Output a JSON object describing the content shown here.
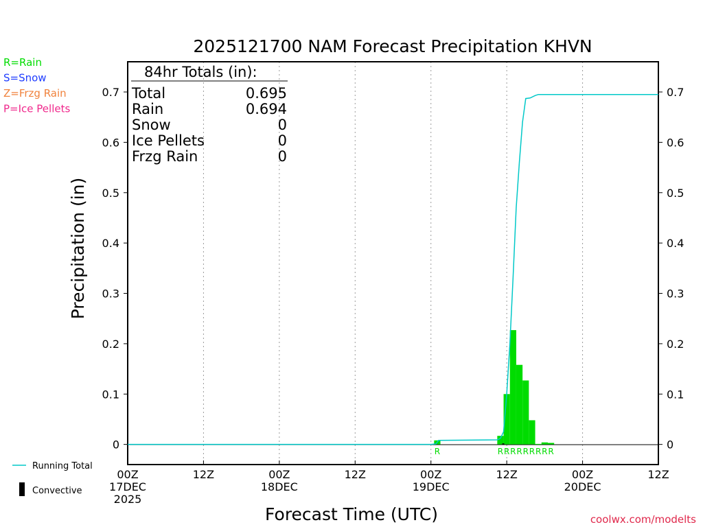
{
  "chart_data": {
    "type": "bar",
    "title": "2025121700 NAM Forecast Precipitation KHVN",
    "xlabel": "Forecast Time (UTC)",
    "ylabel": "Precipitation (in)",
    "ylim": [
      -0.04,
      0.76
    ],
    "yticks": [
      0,
      0.1,
      0.2,
      0.3,
      0.4,
      0.5,
      0.6,
      0.7
    ],
    "ytick_labels": [
      "0",
      "0.1",
      "0.2",
      "0.3",
      "0.4",
      "0.5",
      "0.6",
      "0.7"
    ],
    "xlim_hours": [
      0,
      84
    ],
    "xticks": [
      {
        "hour": 0,
        "lines": [
          "00Z",
          "17DEC",
          "2025"
        ]
      },
      {
        "hour": 12,
        "lines": [
          "12Z"
        ]
      },
      {
        "hour": 24,
        "lines": [
          "00Z",
          "18DEC"
        ]
      },
      {
        "hour": 36,
        "lines": [
          "12Z"
        ]
      },
      {
        "hour": 48,
        "lines": [
          "00Z",
          "19DEC"
        ]
      },
      {
        "hour": 60,
        "lines": [
          "12Z"
        ]
      },
      {
        "hour": 72,
        "lines": [
          "00Z",
          "20DEC"
        ]
      },
      {
        "hour": 84,
        "lines": [
          "12Z"
        ]
      }
    ],
    "bar_interval_hours": 1,
    "bars": [
      {
        "hour": 49,
        "value": 0.008,
        "ptype": "R"
      },
      {
        "hour": 59,
        "value": 0.017,
        "ptype": "R"
      },
      {
        "hour": 60,
        "value": 0.1,
        "ptype": "R"
      },
      {
        "hour": 61,
        "value": 0.227,
        "ptype": "R"
      },
      {
        "hour": 62,
        "value": 0.158,
        "ptype": "R"
      },
      {
        "hour": 63,
        "value": 0.127,
        "ptype": "R"
      },
      {
        "hour": 64,
        "value": 0.048,
        "ptype": "R"
      },
      {
        "hour": 65,
        "value": 0.001,
        "ptype": "R"
      },
      {
        "hour": 66,
        "value": 0.004,
        "ptype": "R"
      },
      {
        "hour": 67,
        "value": 0.003,
        "ptype": "R"
      }
    ],
    "convective": [
      {
        "hour": 59.5,
        "value": 0.002
      }
    ],
    "running_total": [
      [
        0,
        0
      ],
      [
        48,
        0
      ],
      [
        48.8,
        0.001
      ],
      [
        49.2,
        0.008
      ],
      [
        58.5,
        0.009
      ],
      [
        59,
        0.012
      ],
      [
        59.5,
        0.025
      ],
      [
        60,
        0.1
      ],
      [
        60.5,
        0.2
      ],
      [
        61,
        0.33
      ],
      [
        61.5,
        0.47
      ],
      [
        62,
        0.56
      ],
      [
        62.5,
        0.64
      ],
      [
        63,
        0.687
      ],
      [
        63.7,
        0.688
      ],
      [
        64.5,
        0.693
      ],
      [
        65,
        0.695
      ],
      [
        84,
        0.695
      ]
    ],
    "totals": {
      "heading": "84hr Totals (in):",
      "rows": [
        {
          "label": "Total",
          "value": "0.695"
        },
        {
          "label": "Rain",
          "value": "0.694"
        },
        {
          "label": "Snow",
          "value": "0"
        },
        {
          "label": "Ice Pellets",
          "value": "0"
        },
        {
          "label": "Frzg Rain",
          "value": "0"
        }
      ]
    },
    "ptype_legend": [
      {
        "label": "R=Rain",
        "color": "#00dc00"
      },
      {
        "label": "S=Snow",
        "color": "#1e3cff"
      },
      {
        "label": "Z=Frzg Rain",
        "color": "#f0823c"
      },
      {
        "label": "P=Ice Pellets",
        "color": "#f0288c"
      }
    ],
    "series_legend": [
      {
        "label": "Running Total",
        "color": "#00c8c8"
      },
      {
        "label": "Convective",
        "color": "#000000"
      }
    ],
    "colors": {
      "rain": "#00dc00",
      "running_total": "#00c8c8",
      "convective": "#000000"
    },
    "footer": "coolwx.com/modelts",
    "footer_color": "#e0284b"
  }
}
